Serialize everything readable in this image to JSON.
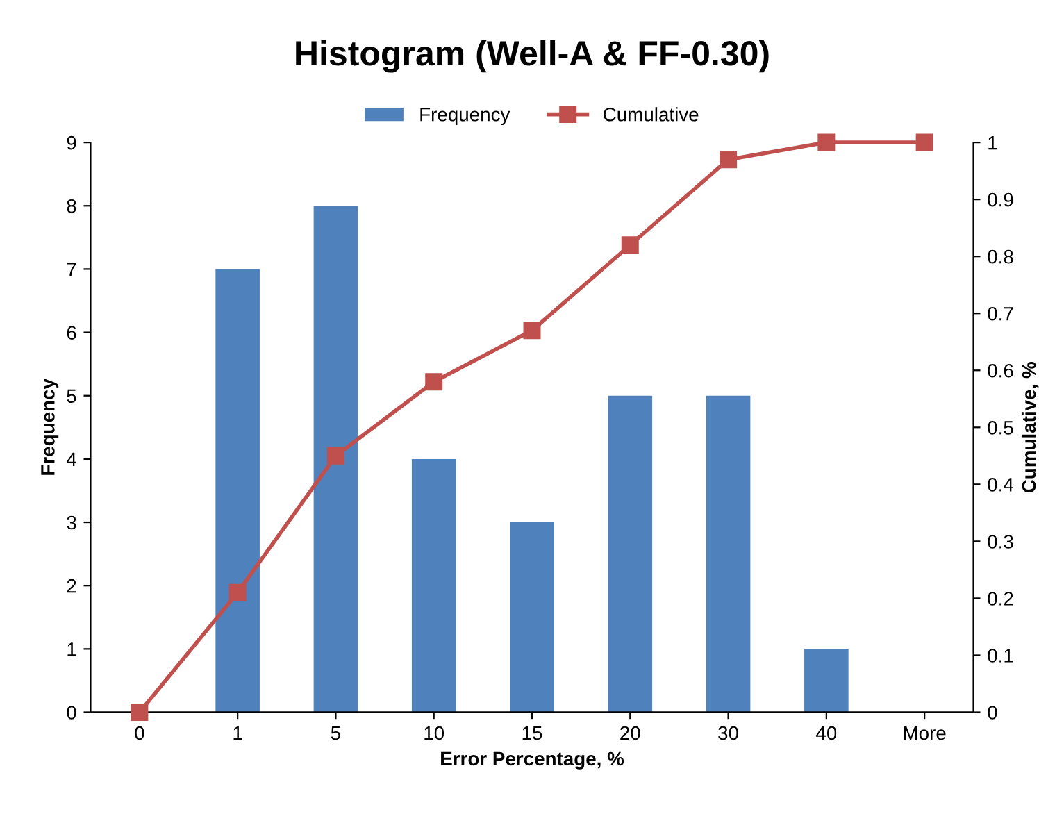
{
  "chart_data": {
    "type": "bar",
    "title": "Histogram (Well-A & FF-0.30)",
    "xlabel": "Error Percentage, %",
    "ylabel": "Frequency",
    "y2label": "Cumulative, %",
    "categories": [
      "0",
      "1",
      "5",
      "10",
      "15",
      "20",
      "30",
      "40",
      "More"
    ],
    "series": [
      {
        "name": "Frequency",
        "color": "#4f81bd",
        "values": [
          0,
          7,
          8,
          4,
          3,
          5,
          5,
          1,
          0
        ]
      },
      {
        "name": "Cumulative",
        "type": "line",
        "axis": "y2",
        "color": "#c0504d",
        "marker": "square",
        "values": [
          0,
          0.21,
          0.45,
          0.58,
          0.67,
          0.82,
          0.97,
          1,
          1
        ]
      }
    ],
    "ylim": [
      0,
      9
    ],
    "yticks": [
      0,
      1,
      2,
      3,
      4,
      5,
      6,
      7,
      8,
      9
    ],
    "y2lim": [
      0,
      1
    ],
    "y2ticks": [
      0,
      0.1,
      0.2,
      0.3,
      0.4,
      0.5,
      0.6,
      0.7,
      0.8,
      0.9,
      1
    ],
    "grid": false,
    "legend": "top"
  }
}
